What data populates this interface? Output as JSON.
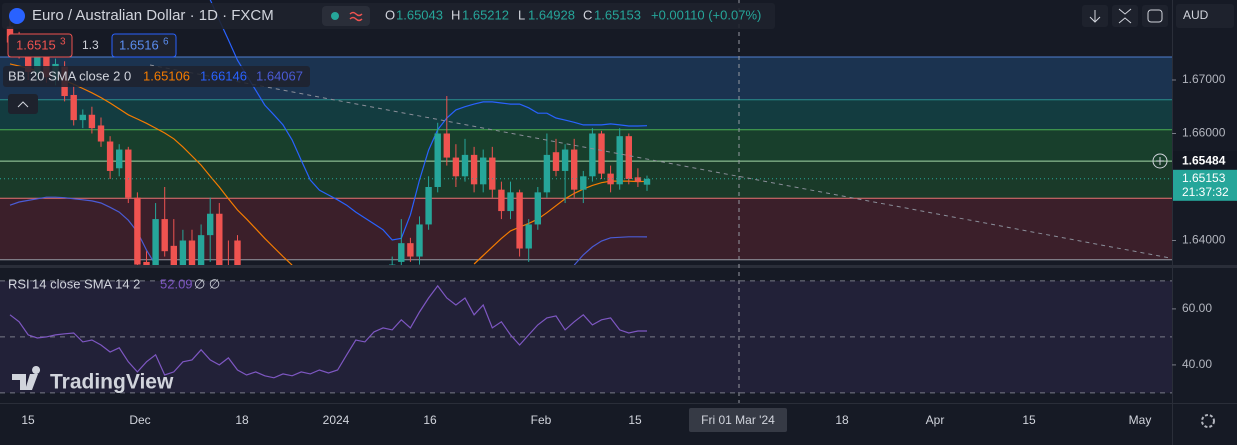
{
  "header": {
    "symbol": "Euro / Australian Dollar · 1D · FXCM",
    "ohlc_labels": [
      "O",
      "H",
      "L",
      "C"
    ],
    "change": "+0.00110 (+0.07%)",
    "sell": {
      "price": "1.6515",
      "pip": "3"
    },
    "spread": "1.3",
    "buy": {
      "price": "1.6516",
      "pip": "6"
    },
    "currency": "AUD"
  },
  "watermark": "TradingView",
  "x_labels": [
    "15",
    "Dec",
    "18",
    "2024",
    "16",
    "Feb",
    "15",
    "18",
    "Apr",
    "15",
    "May"
  ],
  "crosshair_label": "Fri 01 Mar '24",
  "chart_data": [
    {
      "type": "candlestick",
      "countdown": "21:37:32",
      "ylim": [
        1.63542,
        1.68495
      ],
      "yticks": [
        {
          "value": 1.67,
          "label": "1.67000"
        },
        {
          "value": 1.66,
          "label": "1.66000"
        },
        {
          "value": 1.64,
          "label": "1.64000"
        }
      ],
      "up_color": "#26a69a",
      "down_color": "#ef5350",
      "levels": [
        1.6743,
        1.6663,
        1.6607,
        1.65484,
        1.6479,
        1.6364
      ],
      "level_colors": [
        "#4f7fd0",
        "#2b8f8c",
        "#4caf50",
        "#a5d6a7",
        "#e57373",
        "#9598a1"
      ],
      "zone_colors": [
        "#1b3350",
        "#133c40",
        "#183f2c",
        "#1a3a29",
        "#3b1f2a"
      ],
      "open": [
        1.68,
        1.6775,
        1.675,
        1.6712,
        1.6745,
        1.67,
        1.6725,
        1.6672,
        1.6625,
        1.6635,
        1.6615,
        1.6585,
        1.6535,
        1.657,
        1.648,
        1.636,
        1.634,
        1.644,
        1.639,
        1.633,
        1.64,
        1.635,
        1.641,
        1.645,
        1.6345,
        1.64,
        null,
        null,
        null,
        null,
        null,
        null,
        null,
        null,
        null,
        null,
        null,
        null,
        null,
        null,
        null,
        null,
        1.632,
        1.636,
        1.6395,
        1.637,
        1.643,
        1.65,
        1.66,
        1.6555,
        1.652,
        1.656,
        1.6505,
        1.6555,
        1.6495,
        1.6455,
        1.649,
        1.6385,
        1.643,
        1.649,
        1.6565,
        1.653,
        1.657,
        1.6495,
        1.652,
        1.66,
        1.6525,
        1.6505,
        1.6595,
        1.6518,
        1.65043
      ],
      "high": [
        1.683,
        1.679,
        1.677,
        1.676,
        1.676,
        1.674,
        1.6735,
        1.669,
        1.6645,
        1.665,
        1.663,
        1.6595,
        1.658,
        1.6575,
        1.649,
        1.638,
        1.647,
        1.65,
        1.644,
        1.642,
        1.642,
        1.643,
        1.648,
        1.647,
        1.64,
        1.641,
        null,
        null,
        null,
        null,
        null,
        null,
        null,
        null,
        null,
        null,
        null,
        null,
        null,
        null,
        null,
        null,
        1.637,
        1.644,
        1.6405,
        1.6445,
        1.652,
        1.662,
        1.667,
        1.658,
        1.659,
        1.6575,
        1.657,
        1.6575,
        1.651,
        1.651,
        1.6495,
        1.644,
        1.65,
        1.66,
        1.659,
        1.658,
        1.659,
        1.653,
        1.661,
        1.6605,
        1.654,
        1.661,
        1.66,
        1.6535,
        1.65212
      ],
      "low": [
        1.676,
        1.674,
        1.67,
        1.67,
        1.6695,
        1.669,
        1.666,
        1.6615,
        1.661,
        1.66,
        1.6575,
        1.6515,
        1.652,
        1.647,
        1.634,
        1.63,
        1.633,
        1.637,
        1.631,
        1.632,
        1.634,
        1.634,
        1.636,
        1.633,
        1.63,
        1.632,
        null,
        null,
        null,
        null,
        null,
        null,
        null,
        null,
        null,
        null,
        null,
        null,
        null,
        null,
        null,
        null,
        1.63,
        1.634,
        1.636,
        1.6355,
        1.642,
        1.649,
        1.654,
        1.65,
        1.651,
        1.649,
        1.649,
        1.648,
        1.644,
        1.644,
        1.637,
        1.636,
        1.642,
        1.648,
        1.652,
        1.647,
        1.648,
        1.647,
        1.651,
        1.6515,
        1.649,
        1.6495,
        1.6505,
        1.65,
        1.64928
      ],
      "close": [
        1.677,
        1.675,
        1.6715,
        1.6745,
        1.6705,
        1.673,
        1.667,
        1.6625,
        1.6635,
        1.661,
        1.6585,
        1.653,
        1.657,
        1.648,
        1.6355,
        1.632,
        1.644,
        1.638,
        1.633,
        1.64,
        1.635,
        1.641,
        1.645,
        1.6345,
        1.632,
        1.634,
        null,
        null,
        null,
        null,
        null,
        null,
        null,
        null,
        null,
        null,
        null,
        null,
        null,
        null,
        null,
        null,
        1.6355,
        1.6395,
        1.637,
        1.643,
        1.65,
        1.66,
        1.6555,
        1.652,
        1.656,
        1.6505,
        1.6555,
        1.6495,
        1.6455,
        1.649,
        1.6385,
        1.643,
        1.649,
        1.656,
        1.653,
        1.657,
        1.6495,
        1.652,
        1.66,
        1.6525,
        1.6505,
        1.6595,
        1.6515,
        1.651,
        1.65153
      ],
      "indicator": {
        "name": "BB",
        "params": "20 SMA close 2 0",
        "series": [
          {
            "color": "#f57c00",
            "values": [
              1.673,
              1.6726,
              1.6722,
              1.6717,
              1.6712,
              1.6706,
              1.6699,
              1.6692,
              1.6684,
              1.6676,
              1.6667,
              1.6657,
              1.6646,
              1.6635,
              1.6627,
              1.6619,
              1.661,
              1.6601,
              1.659,
              1.6575,
              1.6558,
              1.6541,
              1.652,
              1.65,
              1.6478,
              1.6457,
              1.644,
              1.6422,
              1.6404,
              1.6387,
              1.637,
              1.6354,
              null,
              null,
              null,
              null,
              null,
              null,
              null,
              null,
              null,
              null,
              null,
              null,
              null,
              null,
              null,
              null,
              null,
              null,
              null,
              1.6356,
              1.6372,
              1.6388,
              1.6404,
              1.6418,
              1.6425,
              1.6432,
              1.644,
              1.6452,
              1.6465,
              1.6478,
              1.6488,
              1.6496,
              1.6503,
              1.6508,
              1.6511,
              1.6511,
              1.6511,
              1.651,
              1.65106
            ]
          },
          {
            "color": "#2962ff",
            "values": [
              null,
              null,
              null,
              null,
              null,
              null,
              null,
              null,
              null,
              null,
              null,
              null,
              null,
              null,
              null,
              null,
              null,
              null,
              null,
              null,
              null,
              null,
              1.685,
              1.6812,
              1.6775,
              1.6737,
              1.6709,
              1.6681,
              1.6653,
              1.6635,
              1.6616,
              1.6588,
              1.655,
              1.6513,
              1.6494,
              1.6485,
              1.6476,
              1.6466,
              1.6453,
              1.6442,
              1.6431,
              1.642,
              1.6401,
              1.6404,
              1.6448,
              1.6513,
              1.6569,
              1.6607,
              1.6629,
              1.6644,
              1.665,
              1.6655,
              1.6659,
              1.6659,
              1.6657,
              1.6655,
              1.6655,
              1.6648,
              1.6638,
              1.6638,
              1.6629,
              1.6625,
              1.6621,
              1.6616,
              1.6616,
              1.6616,
              1.6618,
              1.6616,
              1.6614,
              1.6614,
              1.66146
            ]
          },
          {
            "color": "#4a5bd4",
            "values": [
              1.6466,
              1.6472,
              1.6475,
              1.6478,
              1.6481,
              1.6481,
              1.648,
              1.6478,
              1.6476,
              1.6474,
              1.647,
              1.6462,
              1.6453,
              1.6438,
              1.6416,
              1.6382,
              1.6354,
              null,
              null,
              null,
              null,
              null,
              null,
              null,
              null,
              null,
              null,
              null,
              null,
              null,
              null,
              null,
              null,
              null,
              null,
              null,
              null,
              null,
              null,
              null,
              null,
              null,
              null,
              null,
              null,
              null,
              null,
              null,
              null,
              null,
              null,
              null,
              null,
              null,
              null,
              null,
              null,
              null,
              null,
              null,
              null,
              null,
              1.6354,
              1.6373,
              1.6388,
              1.6399,
              1.6405,
              1.6406,
              1.6407,
              1.6407,
              1.64067
            ]
          }
        ]
      }
    },
    {
      "type": "line",
      "name": "RSI",
      "params": "14 close SMA 14 2",
      "extra": "∅ ∅",
      "color": "#7e57c2",
      "ylim": [
        26.4,
        74.6
      ],
      "yticks": [
        {
          "value": 60,
          "label": "60.00"
        },
        {
          "value": 40,
          "label": "40.00"
        }
      ],
      "bands": [
        70,
        50,
        30
      ],
      "values": [
        57.9,
        55.4,
        50.7,
        49.6,
        50.0,
        50.7,
        51.1,
        51.4,
        48.2,
        48.9,
        47.1,
        44.6,
        46.1,
        41.1,
        37.5,
        41.1,
        43.6,
        36.4,
        37.5,
        41.1,
        41.8,
        45.4,
        41.8,
        40.0,
        42.5,
        38.2,
        36.4,
        37.5,
        36.1,
        35.4,
        36.8,
        36.1,
        37.5,
        36.8,
        38.2,
        37.1,
        38.2,
        43.6,
        48.9,
        48.2,
        51.8,
        53.2,
        52.5,
        56.1,
        53.2,
        58.9,
        63.9,
        68.2,
        63.9,
        61.4,
        63.9,
        57.9,
        61.4,
        53.2,
        55.4,
        50.7,
        47.1,
        50.7,
        54.3,
        56.8,
        57.5,
        52.5,
        55.4,
        57.9,
        54.3,
        56.1,
        56.8,
        52.5,
        51.4,
        52.1,
        52.09
      ]
    }
  ]
}
